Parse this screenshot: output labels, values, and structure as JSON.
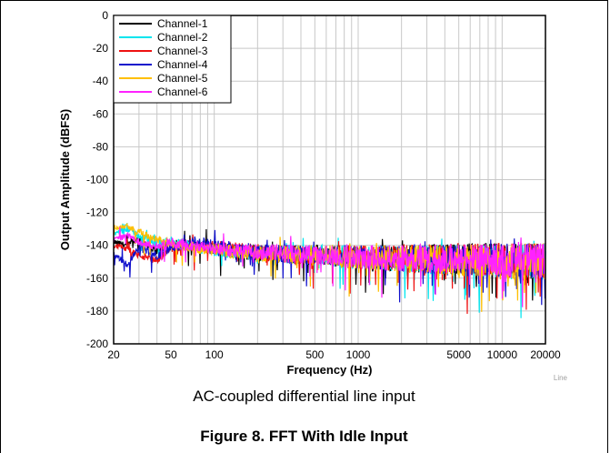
{
  "caption": "AC-coupled differential line input",
  "figure_title": "Figure 8. FFT With Idle Input",
  "watermark": "Line",
  "chart_data": {
    "type": "line",
    "title": "",
    "xlabel": "Frequency (Hz)",
    "ylabel": "Output Amplitude (dBFS)",
    "x_scale": "log",
    "xlim": [
      20,
      20000
    ],
    "ylim": [
      -200,
      0
    ],
    "x_ticks": [
      20,
      50,
      100,
      500,
      1000,
      5000,
      10000,
      20000
    ],
    "x_tick_labels": [
      "20",
      "50",
      "100",
      "500",
      "1000",
      "5000",
      "10000",
      "20000"
    ],
    "y_ticks": [
      0,
      -20,
      -40,
      -60,
      -80,
      -100,
      -120,
      -140,
      -160,
      -180,
      -200
    ],
    "y_tick_labels": [
      "0",
      "-20",
      "-40",
      "-60",
      "-80",
      "-100",
      "-120",
      "-140",
      "-160",
      "-180",
      "-200"
    ],
    "grid": true,
    "legend_position": "top-left",
    "series": [
      {
        "name": "Channel-1",
        "color": "#000000",
        "x": [
          20,
          25,
          30,
          40,
          50,
          70,
          100,
          200,
          500,
          1000,
          2000,
          5000,
          10000,
          20000
        ],
        "y": [
          -138,
          -140,
          -136,
          -144,
          -138,
          -140,
          -142,
          -145,
          -146,
          -147,
          -148,
          -148,
          -149,
          -150
        ]
      },
      {
        "name": "Channel-2",
        "color": "#00e5ee",
        "x": [
          20,
          25,
          30,
          40,
          50,
          70,
          100,
          200,
          500,
          1000,
          2000,
          5000,
          10000,
          20000
        ],
        "y": [
          -133,
          -130,
          -134,
          -139,
          -137,
          -141,
          -143,
          -145,
          -146,
          -147,
          -148,
          -149,
          -150,
          -150
        ]
      },
      {
        "name": "Channel-3",
        "color": "#ee1111",
        "x": [
          20,
          25,
          30,
          40,
          50,
          70,
          100,
          200,
          500,
          1000,
          2000,
          5000,
          10000,
          20000
        ],
        "y": [
          -140,
          -142,
          -146,
          -150,
          -140,
          -142,
          -141,
          -144,
          -146,
          -147,
          -148,
          -148,
          -149,
          -150
        ]
      },
      {
        "name": "Channel-4",
        "color": "#1111cc",
        "x": [
          20,
          25,
          30,
          40,
          50,
          70,
          100,
          200,
          500,
          1000,
          2000,
          5000,
          10000,
          20000
        ],
        "y": [
          -145,
          -152,
          -140,
          -147,
          -141,
          -139,
          -140,
          -144,
          -146,
          -147,
          -148,
          -149,
          -149,
          -150
        ]
      },
      {
        "name": "Channel-5",
        "color": "#ffbf00",
        "x": [
          20,
          25,
          30,
          40,
          50,
          70,
          100,
          200,
          500,
          1000,
          2000,
          5000,
          10000,
          20000
        ],
        "y": [
          -129,
          -128,
          -132,
          -136,
          -139,
          -141,
          -143,
          -145,
          -146,
          -147,
          -148,
          -149,
          -150,
          -150
        ]
      },
      {
        "name": "Channel-6",
        "color": "#ff22ff",
        "x": [
          20,
          25,
          30,
          40,
          50,
          70,
          100,
          200,
          500,
          1000,
          2000,
          5000,
          10000,
          20000
        ],
        "y": [
          -137,
          -134,
          -138,
          -141,
          -138,
          -140,
          -142,
          -144,
          -146,
          -147,
          -148,
          -148,
          -149,
          -150
        ]
      }
    ]
  }
}
